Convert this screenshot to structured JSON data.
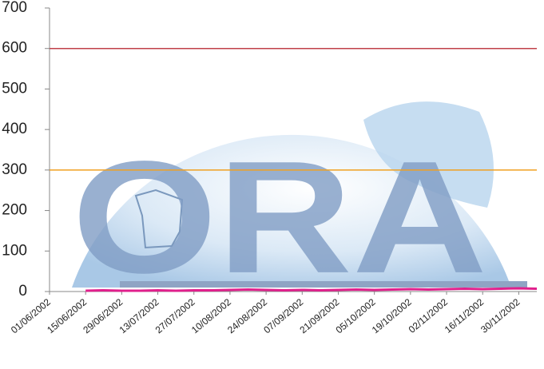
{
  "chart_data": {
    "type": "line",
    "watermark": "ORA",
    "categories": [
      "01/06/2002",
      null,
      "15/06/2002",
      null,
      "29/06/2002",
      null,
      "13/07/2002",
      null,
      "27/07/2002",
      null,
      "10/08/2002",
      null,
      "24/08/2002",
      null,
      "07/09/2002",
      null,
      "21/09/2002",
      null,
      "05/10/2002",
      null,
      "19/10/2002",
      null,
      "02/11/2002",
      null,
      "16/11/2002",
      null,
      "30/11/2002",
      null
    ],
    "series": [
      {
        "color": "#e0208c",
        "values": [
          3,
          null,
          2,
          3,
          2,
          2,
          3,
          2,
          3,
          3,
          4,
          5,
          4,
          3,
          4,
          3,
          4,
          5,
          4,
          5,
          6,
          5,
          6,
          7,
          6,
          7,
          8,
          7
        ]
      }
    ],
    "thresholds": [
      {
        "value": 600,
        "color": "#c0404a"
      },
      {
        "value": 300,
        "color": "#f0a020"
      }
    ],
    "ylim": [
      0,
      700
    ],
    "yticks": [
      0,
      100,
      200,
      300,
      400,
      500,
      600,
      700
    ]
  }
}
